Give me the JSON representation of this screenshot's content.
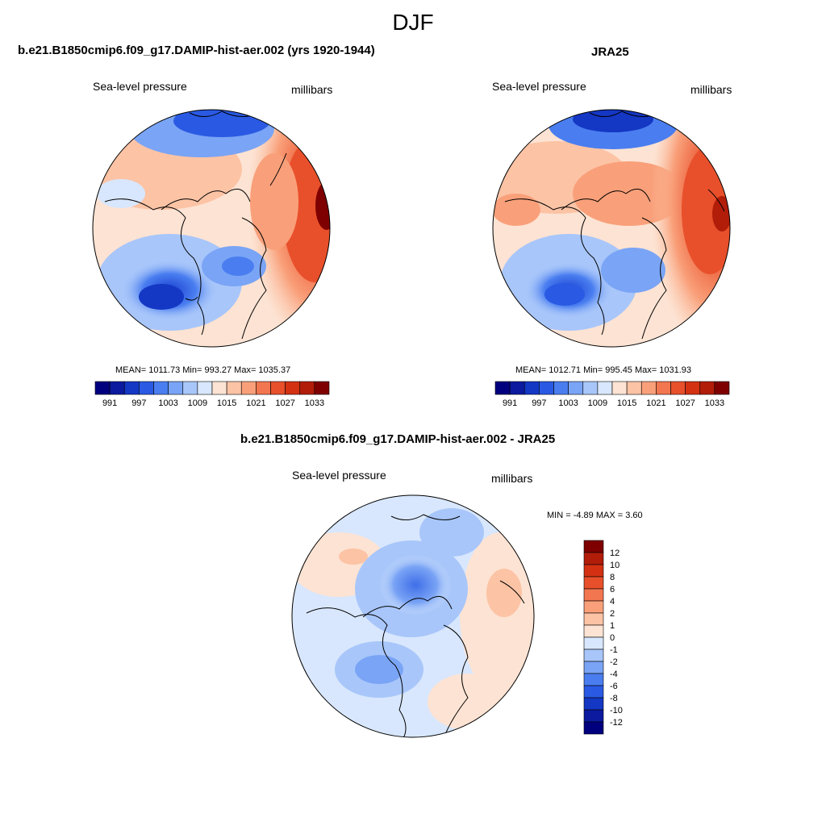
{
  "main_title": "DJF",
  "panels": [
    {
      "title": "b.e21.B1850cmip6.f09_g17.DAMIP-hist-aer.002 (yrs 1920-1944)",
      "left_label": "Sea-level pressure",
      "right_label": "millibars",
      "stats": "MEAN= 1011.73  Min= 993.27  Max= 1035.37"
    },
    {
      "title": "JRA25",
      "left_label": "Sea-level pressure",
      "right_label": "millibars",
      "stats": "MEAN= 1012.71  Min= 995.45  Max= 1031.93"
    },
    {
      "title": "b.e21.B1850cmip6.f09_g17.DAMIP-hist-aer.002 - JRA25",
      "left_label": "Sea-level pressure",
      "right_label": "millibars",
      "stats": "MIN =  -4.89 MAX =   3.60"
    }
  ],
  "abs_colorbar": {
    "colors": [
      "#00007f",
      "#0b1a9e",
      "#1437c4",
      "#2a5ae3",
      "#4a7ef0",
      "#7aa4f5",
      "#a8c6fa",
      "#d8e7fd",
      "#fde3d3",
      "#fcc3a5",
      "#f9a07a",
      "#f2764f",
      "#e8502b",
      "#d43113",
      "#b21d0a",
      "#7f0000"
    ],
    "tick_labels": [
      "991",
      "997",
      "1003",
      "1009",
      "1015",
      "1021",
      "1027",
      "1033"
    ]
  },
  "diff_colorbar": {
    "colors": [
      "#00007f",
      "#0b1a9e",
      "#1437c4",
      "#2a5ae3",
      "#4a7ef0",
      "#7aa4f5",
      "#a8c6fa",
      "#d8e7fd",
      "#fde3d3",
      "#fcc3a5",
      "#f9a07a",
      "#f2764f",
      "#e8502b",
      "#d43113",
      "#b21d0a",
      "#7f0000"
    ],
    "tick_labels": [
      "12",
      "10",
      "8",
      "6",
      "4",
      "2",
      "1",
      "0",
      "-1",
      "-2",
      "-4",
      "-6",
      "-8",
      "-10",
      "-12"
    ]
  }
}
